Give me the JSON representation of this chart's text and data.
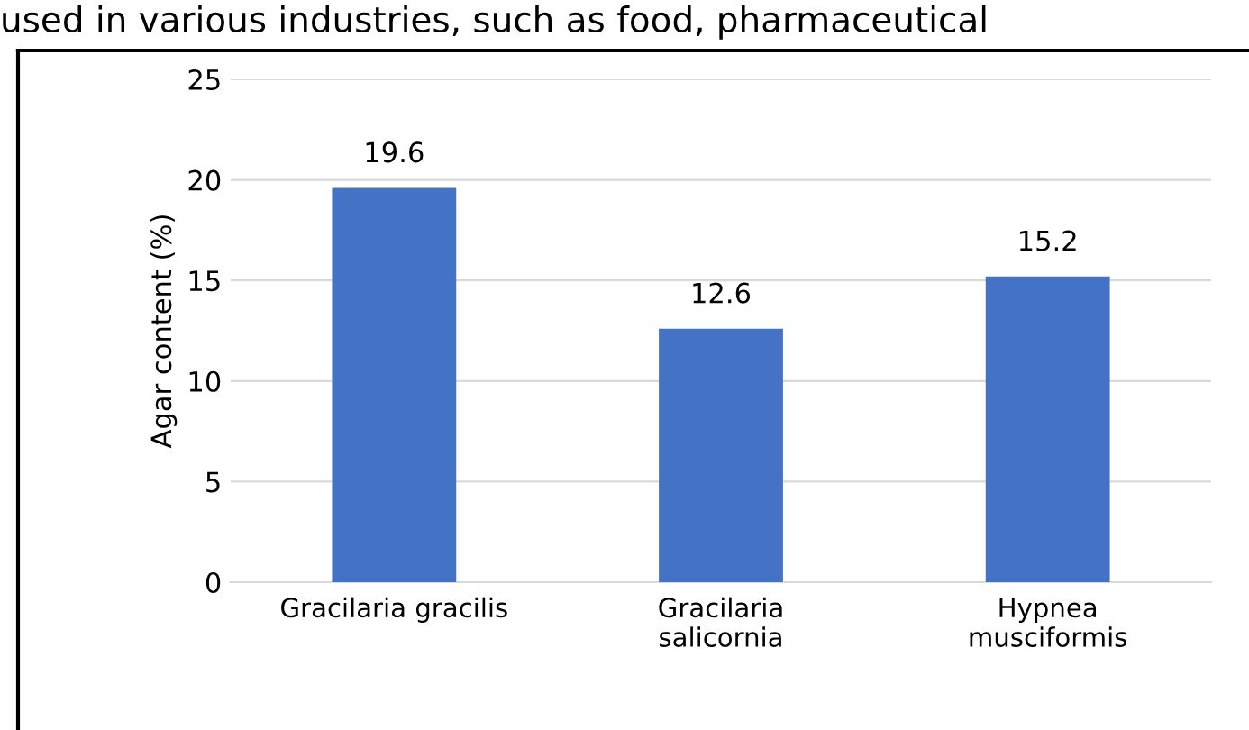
{
  "chart_data": {
    "type": "bar",
    "ylabel": "Agar content (%)",
    "categories": [
      "Gracilaria gracilis",
      "Gracilaria\nsalicornia",
      "Hypnea\nmusciformis"
    ],
    "values": [
      19.6,
      12.6,
      15.2
    ],
    "color": "#4472c4",
    "ylim": [
      0,
      25
    ],
    "yticks": [
      0,
      5,
      10,
      15,
      20,
      25
    ],
    "grid": "y",
    "data_labels": true,
    "annotations": [
      "used in various industries, such as food, pharmaceutical"
    ]
  }
}
